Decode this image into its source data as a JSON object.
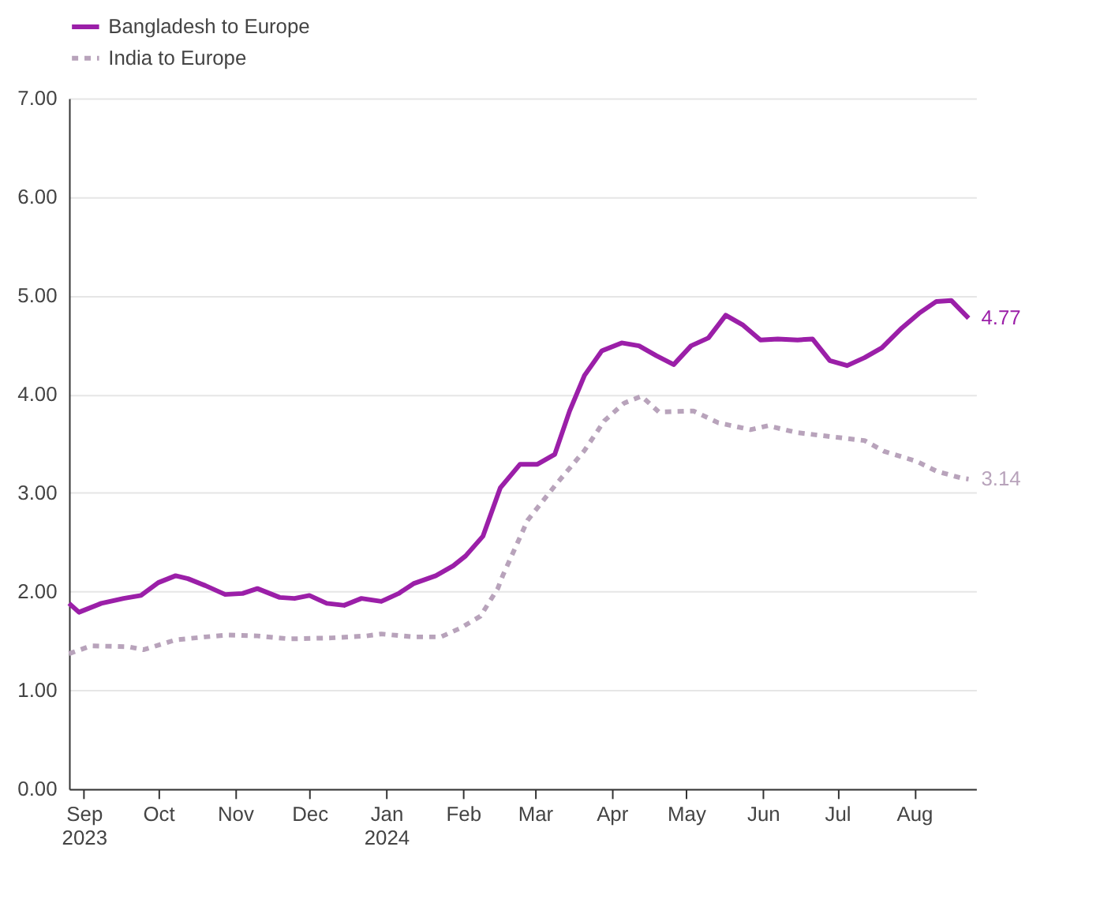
{
  "chart_data": {
    "type": "line",
    "xlim": [
      "2023-08-26",
      "2024-08-26"
    ],
    "xticks": [
      {
        "value": "2023-09-01",
        "label": "Sep 2023"
      },
      {
        "value": "2023-10-01",
        "label": "Oct"
      },
      {
        "value": "2023-11-01",
        "label": "Nov"
      },
      {
        "value": "2023-12-01",
        "label": "Dec"
      },
      {
        "value": "2024-01-01",
        "label": "Jan 2024"
      },
      {
        "value": "2024-02-01",
        "label": "Feb"
      },
      {
        "value": "2024-03-01",
        "label": "Mar"
      },
      {
        "value": "2024-04-01",
        "label": "Apr"
      },
      {
        "value": "2024-05-01",
        "label": "May"
      },
      {
        "value": "2024-06-01",
        "label": "Jun"
      },
      {
        "value": "2024-07-01",
        "label": "Jul"
      },
      {
        "value": "2024-08-01",
        "label": "Aug"
      }
    ],
    "ylim": [
      0,
      7
    ],
    "yticks": [
      {
        "value": 0,
        "label": "0.00"
      },
      {
        "value": 1,
        "label": "1.00"
      },
      {
        "value": 2,
        "label": "2.00"
      },
      {
        "value": 3,
        "label": "3.00"
      },
      {
        "value": 4,
        "label": "4.00"
      },
      {
        "value": 5,
        "label": "5.00"
      },
      {
        "value": 6,
        "label": "6.00"
      },
      {
        "value": 7,
        "label": "7.00"
      }
    ],
    "grid": "y",
    "legend": "top",
    "series": [
      {
        "name": "Bangladesh to Europe",
        "color": "#9b1fa8",
        "line_style": "solid",
        "x": [
          "2023-08-26",
          "2023-08-30",
          "2023-09-08",
          "2023-09-17",
          "2023-09-24",
          "2023-10-01",
          "2023-10-08",
          "2023-10-13",
          "2023-10-20",
          "2023-10-28",
          "2023-11-04",
          "2023-11-10",
          "2023-11-19",
          "2023-11-25",
          "2023-12-01",
          "2023-12-08",
          "2023-12-15",
          "2023-12-22",
          "2023-12-30",
          "2024-01-06",
          "2024-01-12",
          "2024-01-21",
          "2024-01-28",
          "2024-02-02",
          "2024-02-09",
          "2024-02-16",
          "2024-02-24",
          "2024-03-02",
          "2024-03-09",
          "2024-03-15",
          "2024-03-21",
          "2024-03-28",
          "2024-04-05",
          "2024-04-12",
          "2024-04-19",
          "2024-04-26",
          "2024-05-03",
          "2024-05-10",
          "2024-05-17",
          "2024-05-24",
          "2024-05-31",
          "2024-06-07",
          "2024-06-15",
          "2024-06-21",
          "2024-06-28",
          "2024-07-05",
          "2024-07-12",
          "2024-07-19",
          "2024-07-27",
          "2024-08-03",
          "2024-08-10",
          "2024-08-16",
          "2024-08-23"
        ],
        "values": [
          1.88,
          1.79,
          1.88,
          1.93,
          1.96,
          2.09,
          2.16,
          2.13,
          2.06,
          1.97,
          1.98,
          2.03,
          1.94,
          1.93,
          1.96,
          1.88,
          1.86,
          1.93,
          1.9,
          1.98,
          2.08,
          2.16,
          2.26,
          2.36,
          2.56,
          3.05,
          3.29,
          3.29,
          3.39,
          3.83,
          4.19,
          4.44,
          4.52,
          4.49,
          4.39,
          4.3,
          4.49,
          4.57,
          4.8,
          4.7,
          4.55,
          4.56,
          4.55,
          4.56,
          4.34,
          4.29,
          4.37,
          4.47,
          4.67,
          4.82,
          4.94,
          4.95,
          4.77
        ]
      },
      {
        "name": "India to Europe",
        "color": "#b8a3bb",
        "line_style": "dashed",
        "x": [
          "2023-08-26",
          "2023-09-04",
          "2023-09-19",
          "2023-09-25",
          "2023-10-08",
          "2023-10-20",
          "2023-10-29",
          "2023-11-10",
          "2023-11-23",
          "2023-12-10",
          "2023-12-24",
          "2023-12-30",
          "2024-01-12",
          "2024-01-23",
          "2024-01-31",
          "2024-02-08",
          "2024-02-15",
          "2024-02-17",
          "2024-02-27",
          "2024-03-09",
          "2024-03-21",
          "2024-03-29",
          "2024-04-06",
          "2024-04-13",
          "2024-04-20",
          "2024-05-04",
          "2024-05-14",
          "2024-05-27",
          "2024-06-03",
          "2024-06-15",
          "2024-06-25",
          "2024-07-12",
          "2024-07-20",
          "2024-08-02",
          "2024-08-10",
          "2024-08-20",
          "2024-08-23"
        ],
        "values": [
          1.37,
          1.45,
          1.44,
          1.41,
          1.51,
          1.54,
          1.56,
          1.55,
          1.52,
          1.53,
          1.55,
          1.57,
          1.54,
          1.54,
          1.63,
          1.75,
          2.03,
          2.16,
          2.72,
          3.07,
          3.43,
          3.73,
          3.91,
          3.98,
          3.82,
          3.83,
          3.71,
          3.64,
          3.68,
          3.61,
          3.58,
          3.53,
          3.42,
          3.32,
          3.22,
          3.15,
          3.14
        ]
      }
    ],
    "annotations": [
      {
        "text": "4.77",
        "x": "2024-08-23",
        "y": 4.77
      },
      {
        "text": "3.14",
        "x": "2024-08-23",
        "y": 3.14
      }
    ]
  }
}
